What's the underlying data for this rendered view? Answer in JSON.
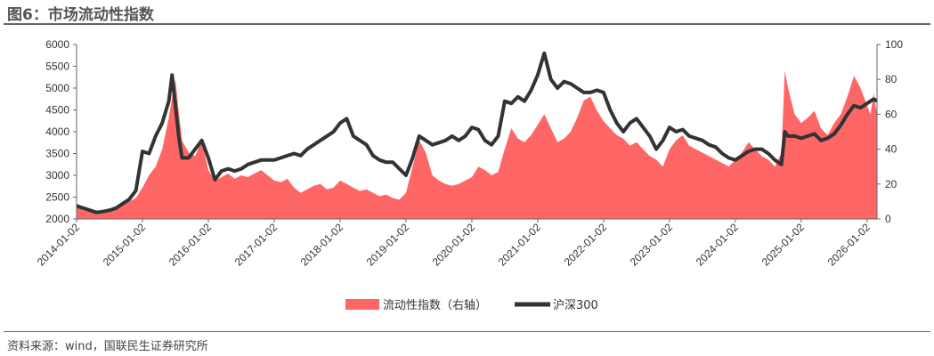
{
  "title": "图6：市场流动性指数",
  "source": "资料来源：wind，国联民生证券研究所",
  "colors": {
    "liquidity": "#ff6666",
    "index": "#333333",
    "axis": "#666666"
  },
  "chart_data": {
    "type": "line",
    "legend_position": "bottom-center",
    "grid": false,
    "x_ticks": [
      "2014-01-02",
      "2015-01-02",
      "2016-01-02",
      "2017-01-02",
      "2018-01-02",
      "2019-01-02",
      "2020-01-02",
      "2021-01-02",
      "2022-01-02",
      "2023-01-02",
      "2024-01-02",
      "2025-01-02",
      "2026-01-02"
    ],
    "xlim": [
      2014.0,
      2026.15
    ],
    "y_left": {
      "ylim": [
        2000,
        6000
      ],
      "ticks": [
        2000,
        2500,
        3000,
        3500,
        4000,
        4500,
        5000,
        5500,
        6000
      ]
    },
    "y_right": {
      "ylim": [
        0,
        100
      ],
      "ticks": [
        0,
        20,
        40,
        60,
        80,
        100
      ]
    },
    "series": [
      {
        "name": "流动性指数（右轴）",
        "type": "area",
        "axis": "right",
        "color": "#ff6666",
        "points": [
          [
            2014.0,
            8
          ],
          [
            2014.1,
            5
          ],
          [
            2014.2,
            4
          ],
          [
            2014.3,
            3
          ],
          [
            2014.4,
            4
          ],
          [
            2014.5,
            5
          ],
          [
            2014.6,
            7
          ],
          [
            2014.7,
            9
          ],
          [
            2014.8,
            10
          ],
          [
            2014.9,
            12
          ],
          [
            2015.0,
            18
          ],
          [
            2015.1,
            25
          ],
          [
            2015.2,
            30
          ],
          [
            2015.3,
            40
          ],
          [
            2015.4,
            58
          ],
          [
            2015.45,
            70
          ],
          [
            2015.5,
            80
          ],
          [
            2015.55,
            62
          ],
          [
            2015.6,
            45
          ],
          [
            2015.7,
            38
          ],
          [
            2015.8,
            36
          ],
          [
            2015.9,
            45
          ],
          [
            2016.0,
            28
          ],
          [
            2016.1,
            22
          ],
          [
            2016.2,
            24
          ],
          [
            2016.3,
            26
          ],
          [
            2016.4,
            23
          ],
          [
            2016.5,
            25
          ],
          [
            2016.6,
            24
          ],
          [
            2016.7,
            26
          ],
          [
            2016.8,
            28
          ],
          [
            2016.9,
            25
          ],
          [
            2017.0,
            22
          ],
          [
            2017.1,
            21
          ],
          [
            2017.2,
            23
          ],
          [
            2017.3,
            18
          ],
          [
            2017.4,
            15
          ],
          [
            2017.5,
            17
          ],
          [
            2017.6,
            19
          ],
          [
            2017.7,
            20
          ],
          [
            2017.8,
            17
          ],
          [
            2017.9,
            18
          ],
          [
            2018.0,
            22
          ],
          [
            2018.1,
            20
          ],
          [
            2018.2,
            18
          ],
          [
            2018.3,
            16
          ],
          [
            2018.4,
            17
          ],
          [
            2018.5,
            15
          ],
          [
            2018.6,
            13
          ],
          [
            2018.7,
            14
          ],
          [
            2018.8,
            12
          ],
          [
            2018.9,
            11
          ],
          [
            2019.0,
            15
          ],
          [
            2019.1,
            30
          ],
          [
            2019.2,
            45
          ],
          [
            2019.3,
            38
          ],
          [
            2019.4,
            25
          ],
          [
            2019.5,
            22
          ],
          [
            2019.6,
            20
          ],
          [
            2019.7,
            19
          ],
          [
            2019.8,
            20
          ],
          [
            2019.9,
            22
          ],
          [
            2020.0,
            24
          ],
          [
            2020.1,
            30
          ],
          [
            2020.2,
            28
          ],
          [
            2020.3,
            25
          ],
          [
            2020.4,
            27
          ],
          [
            2020.5,
            40
          ],
          [
            2020.6,
            52
          ],
          [
            2020.7,
            46
          ],
          [
            2020.8,
            44
          ],
          [
            2020.9,
            48
          ],
          [
            2021.0,
            54
          ],
          [
            2021.1,
            60
          ],
          [
            2021.2,
            52
          ],
          [
            2021.3,
            44
          ],
          [
            2021.4,
            46
          ],
          [
            2021.5,
            50
          ],
          [
            2021.6,
            58
          ],
          [
            2021.7,
            68
          ],
          [
            2021.8,
            70
          ],
          [
            2021.9,
            62
          ],
          [
            2022.0,
            56
          ],
          [
            2022.1,
            52
          ],
          [
            2022.2,
            48
          ],
          [
            2022.3,
            46
          ],
          [
            2022.4,
            42
          ],
          [
            2022.5,
            44
          ],
          [
            2022.6,
            40
          ],
          [
            2022.7,
            36
          ],
          [
            2022.8,
            34
          ],
          [
            2022.9,
            30
          ],
          [
            2023.0,
            40
          ],
          [
            2023.1,
            45
          ],
          [
            2023.2,
            48
          ],
          [
            2023.3,
            42
          ],
          [
            2023.4,
            40
          ],
          [
            2023.5,
            38
          ],
          [
            2023.6,
            36
          ],
          [
            2023.7,
            34
          ],
          [
            2023.8,
            32
          ],
          [
            2023.9,
            30
          ],
          [
            2024.0,
            34
          ],
          [
            2024.1,
            38
          ],
          [
            2024.2,
            44
          ],
          [
            2024.3,
            40
          ],
          [
            2024.4,
            36
          ],
          [
            2024.5,
            34
          ],
          [
            2024.6,
            30
          ],
          [
            2024.7,
            38
          ],
          [
            2024.75,
            85
          ],
          [
            2024.8,
            75
          ],
          [
            2024.9,
            60
          ],
          [
            2025.0,
            55
          ],
          [
            2025.1,
            58
          ],
          [
            2025.2,
            62
          ],
          [
            2025.3,
            52
          ],
          [
            2025.4,
            48
          ],
          [
            2025.5,
            55
          ],
          [
            2025.6,
            60
          ],
          [
            2025.7,
            70
          ],
          [
            2025.8,
            82
          ],
          [
            2025.9,
            75
          ],
          [
            2026.0,
            65
          ],
          [
            2026.05,
            60
          ],
          [
            2026.1,
            72
          ],
          [
            2026.15,
            60
          ]
        ]
      },
      {
        "name": "沪深300",
        "type": "line",
        "axis": "left",
        "color": "#333333",
        "points": [
          [
            2014.0,
            2300
          ],
          [
            2014.1,
            2250
          ],
          [
            2014.2,
            2200
          ],
          [
            2014.3,
            2150
          ],
          [
            2014.4,
            2170
          ],
          [
            2014.5,
            2200
          ],
          [
            2014.6,
            2250
          ],
          [
            2014.7,
            2350
          ],
          [
            2014.8,
            2450
          ],
          [
            2014.9,
            2650
          ],
          [
            2015.0,
            3550
          ],
          [
            2015.1,
            3500
          ],
          [
            2015.2,
            3900
          ],
          [
            2015.3,
            4200
          ],
          [
            2015.4,
            4700
          ],
          [
            2015.45,
            5300
          ],
          [
            2015.5,
            4600
          ],
          [
            2015.55,
            3900
          ],
          [
            2015.6,
            3400
          ],
          [
            2015.7,
            3400
          ],
          [
            2015.8,
            3600
          ],
          [
            2015.9,
            3800
          ],
          [
            2016.0,
            3400
          ],
          [
            2016.1,
            2900
          ],
          [
            2016.2,
            3100
          ],
          [
            2016.3,
            3150
          ],
          [
            2016.4,
            3100
          ],
          [
            2016.5,
            3150
          ],
          [
            2016.6,
            3250
          ],
          [
            2016.7,
            3300
          ],
          [
            2016.8,
            3350
          ],
          [
            2016.9,
            3350
          ],
          [
            2017.0,
            3350
          ],
          [
            2017.1,
            3400
          ],
          [
            2017.2,
            3450
          ],
          [
            2017.3,
            3500
          ],
          [
            2017.4,
            3450
          ],
          [
            2017.5,
            3600
          ],
          [
            2017.6,
            3700
          ],
          [
            2017.7,
            3800
          ],
          [
            2017.8,
            3900
          ],
          [
            2017.9,
            4000
          ],
          [
            2018.0,
            4200
          ],
          [
            2018.1,
            4300
          ],
          [
            2018.15,
            4100
          ],
          [
            2018.2,
            3900
          ],
          [
            2018.3,
            3800
          ],
          [
            2018.4,
            3700
          ],
          [
            2018.5,
            3450
          ],
          [
            2018.6,
            3350
          ],
          [
            2018.7,
            3300
          ],
          [
            2018.8,
            3300
          ],
          [
            2018.9,
            3150
          ],
          [
            2019.0,
            3000
          ],
          [
            2019.1,
            3400
          ],
          [
            2019.2,
            3900
          ],
          [
            2019.3,
            3800
          ],
          [
            2019.4,
            3700
          ],
          [
            2019.5,
            3750
          ],
          [
            2019.6,
            3800
          ],
          [
            2019.7,
            3900
          ],
          [
            2019.8,
            3800
          ],
          [
            2019.9,
            3900
          ],
          [
            2020.0,
            4100
          ],
          [
            2020.1,
            4050
          ],
          [
            2020.2,
            3800
          ],
          [
            2020.3,
            3700
          ],
          [
            2020.4,
            3900
          ],
          [
            2020.5,
            4700
          ],
          [
            2020.6,
            4650
          ],
          [
            2020.7,
            4800
          ],
          [
            2020.8,
            4700
          ],
          [
            2020.9,
            4950
          ],
          [
            2021.0,
            5300
          ],
          [
            2021.1,
            5800
          ],
          [
            2021.2,
            5200
          ],
          [
            2021.3,
            5000
          ],
          [
            2021.4,
            5150
          ],
          [
            2021.5,
            5100
          ],
          [
            2021.6,
            5000
          ],
          [
            2021.7,
            4900
          ],
          [
            2021.8,
            4900
          ],
          [
            2021.9,
            4950
          ],
          [
            2022.0,
            4900
          ],
          [
            2022.1,
            4500
          ],
          [
            2022.2,
            4200
          ],
          [
            2022.3,
            4000
          ],
          [
            2022.4,
            4200
          ],
          [
            2022.5,
            4300
          ],
          [
            2022.6,
            4100
          ],
          [
            2022.7,
            3900
          ],
          [
            2022.8,
            3600
          ],
          [
            2022.9,
            3800
          ],
          [
            2023.0,
            4100
          ],
          [
            2023.1,
            4000
          ],
          [
            2023.2,
            4050
          ],
          [
            2023.3,
            3900
          ],
          [
            2023.4,
            3850
          ],
          [
            2023.5,
            3800
          ],
          [
            2023.6,
            3700
          ],
          [
            2023.7,
            3650
          ],
          [
            2023.8,
            3500
          ],
          [
            2023.9,
            3400
          ],
          [
            2024.0,
            3350
          ],
          [
            2024.1,
            3450
          ],
          [
            2024.2,
            3550
          ],
          [
            2024.3,
            3600
          ],
          [
            2024.4,
            3600
          ],
          [
            2024.5,
            3500
          ],
          [
            2024.6,
            3350
          ],
          [
            2024.7,
            3250
          ],
          [
            2024.75,
            4000
          ],
          [
            2024.8,
            3900
          ],
          [
            2024.9,
            3900
          ],
          [
            2025.0,
            3850
          ],
          [
            2025.1,
            3900
          ],
          [
            2025.2,
            3950
          ],
          [
            2025.3,
            3800
          ],
          [
            2025.4,
            3850
          ],
          [
            2025.5,
            3950
          ],
          [
            2025.6,
            4150
          ],
          [
            2025.7,
            4400
          ],
          [
            2025.8,
            4600
          ],
          [
            2025.9,
            4550
          ],
          [
            2026.0,
            4650
          ],
          [
            2026.05,
            4700
          ],
          [
            2026.1,
            4750
          ],
          [
            2026.15,
            4700
          ]
        ]
      }
    ]
  }
}
